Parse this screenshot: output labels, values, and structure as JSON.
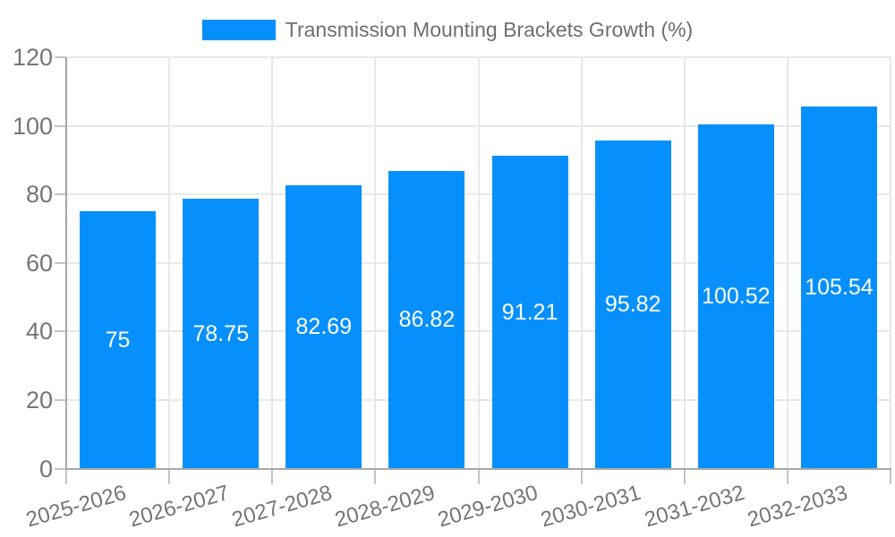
{
  "legend": {
    "label": "Transmission Mounting Brackets Growth (%)"
  },
  "chart_data": {
    "type": "bar",
    "title": "Transmission Mounting Brackets Growth (%)",
    "categories": [
      "2025-2026",
      "2026-2027",
      "2027-2028",
      "2028-2029",
      "2029-2030",
      "2030-2031",
      "2031-2032",
      "2032-2033"
    ],
    "values": [
      75,
      78.75,
      82.69,
      86.82,
      91.21,
      95.82,
      100.52,
      105.54
    ],
    "data_labels": [
      "75",
      "78.75",
      "82.69",
      "86.82",
      "91.21",
      "95.82",
      "100.52",
      "105.54"
    ],
    "xlabel": "",
    "ylabel": "",
    "ylim": [
      0,
      120
    ],
    "yticks": [
      0,
      20,
      40,
      60,
      80,
      100,
      120
    ],
    "grid": true,
    "legend_position": "top-center",
    "x_label_rotation_deg": -16,
    "colors": {
      "bar": "#0790fb",
      "bar_label": "#ffffff",
      "axis_text": "#757575",
      "legend_text": "#6e6e6e",
      "grid": "#e8e8e8",
      "tick": "#c4c4c4",
      "axis_line": "#a8a8a8",
      "background": "#ffffff"
    }
  }
}
